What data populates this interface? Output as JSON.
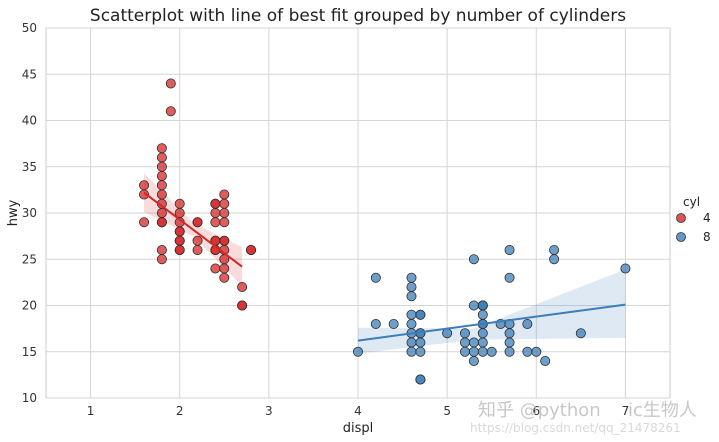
{
  "chart_data": {
    "type": "scatter",
    "title": "Scatterplot with line of best fit grouped by number of cylinders",
    "xlabel": "displ",
    "ylabel": "hwy",
    "xlim": [
      0.5,
      7.5
    ],
    "ylim": [
      10,
      50
    ],
    "xticks": [
      1,
      2,
      3,
      4,
      5,
      6,
      7
    ],
    "yticks": [
      10,
      15,
      20,
      25,
      30,
      35,
      40,
      45,
      50
    ],
    "grid": true,
    "legend": {
      "title": "cyl",
      "position": "right",
      "entries": [
        "4",
        "8"
      ]
    },
    "series": [
      {
        "name": "4",
        "color": "#d62728",
        "points": [
          [
            1.8,
            29
          ],
          [
            1.8,
            29
          ],
          [
            2.0,
            31
          ],
          [
            2.0,
            30
          ],
          [
            2.8,
            26
          ],
          [
            2.8,
            26
          ],
          [
            1.8,
            26
          ],
          [
            1.8,
            25
          ],
          [
            2.0,
            28
          ],
          [
            2.0,
            27
          ],
          [
            1.9,
            44
          ],
          [
            1.9,
            41
          ],
          [
            1.6,
            33
          ],
          [
            1.6,
            32
          ],
          [
            1.6,
            29
          ],
          [
            1.8,
            37
          ],
          [
            1.8,
            36
          ],
          [
            1.8,
            35
          ],
          [
            1.8,
            34
          ],
          [
            1.8,
            33
          ],
          [
            1.8,
            31
          ],
          [
            1.8,
            30
          ],
          [
            2.0,
            29
          ],
          [
            2.0,
            28
          ],
          [
            2.0,
            27
          ],
          [
            2.0,
            26
          ],
          [
            2.2,
            29
          ],
          [
            2.2,
            27
          ],
          [
            2.2,
            26
          ],
          [
            2.4,
            31
          ],
          [
            2.4,
            30
          ],
          [
            2.4,
            29
          ],
          [
            2.4,
            27
          ],
          [
            2.4,
            26
          ],
          [
            2.4,
            24
          ],
          [
            2.5,
            32
          ],
          [
            2.5,
            31
          ],
          [
            2.5,
            30
          ],
          [
            2.5,
            29
          ],
          [
            2.5,
            27
          ],
          [
            2.5,
            26
          ],
          [
            2.5,
            25
          ],
          [
            2.5,
            24
          ],
          [
            2.5,
            23
          ],
          [
            2.7,
            22
          ],
          [
            2.7,
            20
          ],
          [
            2.7,
            20
          ],
          [
            2.4,
            31
          ],
          [
            2.4,
            26
          ],
          [
            2.5,
            27
          ],
          [
            2.2,
            29
          ],
          [
            2.0,
            26
          ],
          [
            1.8,
            32
          ],
          [
            2.4,
            27
          ]
        ],
        "fit_line": [
          [
            1.6,
            32.2
          ],
          [
            2.7,
            24.2
          ]
        ],
        "ci_band": [
          [
            1.6,
            34.3,
            30.1
          ],
          [
            2.15,
            28.9,
            27.5
          ],
          [
            2.7,
            26.3,
            22.1
          ]
        ]
      },
      {
        "name": "8",
        "color": "#3d7db8",
        "points": [
          [
            4.0,
            15
          ],
          [
            4.2,
            18
          ],
          [
            4.2,
            23
          ],
          [
            4.4,
            18
          ],
          [
            4.6,
            23
          ],
          [
            4.6,
            22
          ],
          [
            4.6,
            21
          ],
          [
            4.6,
            19
          ],
          [
            4.6,
            17
          ],
          [
            4.6,
            16
          ],
          [
            4.6,
            15
          ],
          [
            4.7,
            12
          ],
          [
            4.7,
            12
          ],
          [
            4.7,
            16
          ],
          [
            4.7,
            17
          ],
          [
            4.7,
            19
          ],
          [
            4.7,
            15
          ],
          [
            4.7,
            17
          ],
          [
            5.0,
            17
          ],
          [
            5.2,
            15
          ],
          [
            5.2,
            16
          ],
          [
            5.2,
            17
          ],
          [
            5.3,
            20
          ],
          [
            5.3,
            25
          ],
          [
            5.3,
            15
          ],
          [
            5.3,
            14
          ],
          [
            5.4,
            20
          ],
          [
            5.4,
            19
          ],
          [
            5.4,
            18
          ],
          [
            5.4,
            17
          ],
          [
            5.4,
            16
          ],
          [
            5.4,
            15
          ],
          [
            5.4,
            20
          ],
          [
            5.5,
            15
          ],
          [
            5.6,
            18
          ],
          [
            5.7,
            17
          ],
          [
            5.7,
            18
          ],
          [
            5.7,
            16
          ],
          [
            5.9,
            18
          ],
          [
            6.0,
            15
          ],
          [
            6.1,
            14
          ],
          [
            6.2,
            26
          ],
          [
            6.2,
            25
          ],
          [
            6.5,
            17
          ],
          [
            7.0,
            24
          ],
          [
            5.7,
            26
          ],
          [
            5.7,
            23
          ],
          [
            5.7,
            15
          ],
          [
            5.9,
            15
          ],
          [
            5.4,
            20
          ],
          [
            4.6,
            18
          ],
          [
            4.7,
            19
          ],
          [
            5.3,
            16
          ],
          [
            5.4,
            18
          ]
        ],
        "fit_line": [
          [
            4.0,
            16.2
          ],
          [
            7.0,
            20.1
          ]
        ],
        "ci_band": [
          [
            4.0,
            17.6,
            14.8
          ],
          [
            5.3,
            17.5,
            16.3
          ],
          [
            7.0,
            23.9,
            16.5
          ]
        ]
      }
    ]
  },
  "watermark": {
    "zhihu": "知乎 @python",
    "zhihu2": "ic生物人",
    "csdn": "https://blog.csdn.net/qq_21478261"
  }
}
